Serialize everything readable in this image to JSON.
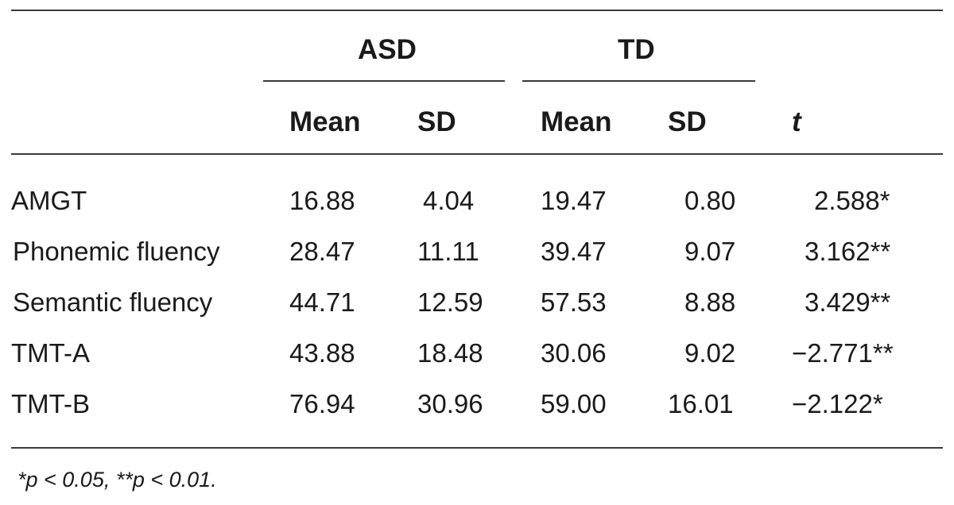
{
  "table": {
    "groups": {
      "asd": "ASD",
      "td": "TD"
    },
    "columns": {
      "asd_mean": "Mean",
      "asd_sd": "SD",
      "td_mean": "Mean",
      "td_sd": "SD",
      "t": "t"
    },
    "rows": [
      {
        "label": "AMGT",
        "asd_mean": "16.88",
        "asd_sd": "4.04",
        "td_mean": "19.47",
        "td_sd": "0.80",
        "t": "2.588*"
      },
      {
        "label": "Phonemic fluency",
        "asd_mean": "28.47",
        "asd_sd": "11.11",
        "td_mean": "39.47",
        "td_sd": "9.07",
        "t": "3.162**"
      },
      {
        "label": "Semantic fluency",
        "asd_mean": "44.71",
        "asd_sd": "12.59",
        "td_mean": "57.53",
        "td_sd": "8.88",
        "t": "3.429**"
      },
      {
        "label": "TMT-A",
        "asd_mean": "43.88",
        "asd_sd": "18.48",
        "td_mean": "30.06",
        "td_sd": "9.02",
        "t": "−2.771**"
      },
      {
        "label": "TMT-B",
        "asd_mean": "76.94",
        "asd_sd": "30.96",
        "td_mean": "59.00",
        "td_sd": "16.01",
        "t": "−2.122*"
      }
    ],
    "footnote": "*p < 0.05, **p < 0.01."
  }
}
